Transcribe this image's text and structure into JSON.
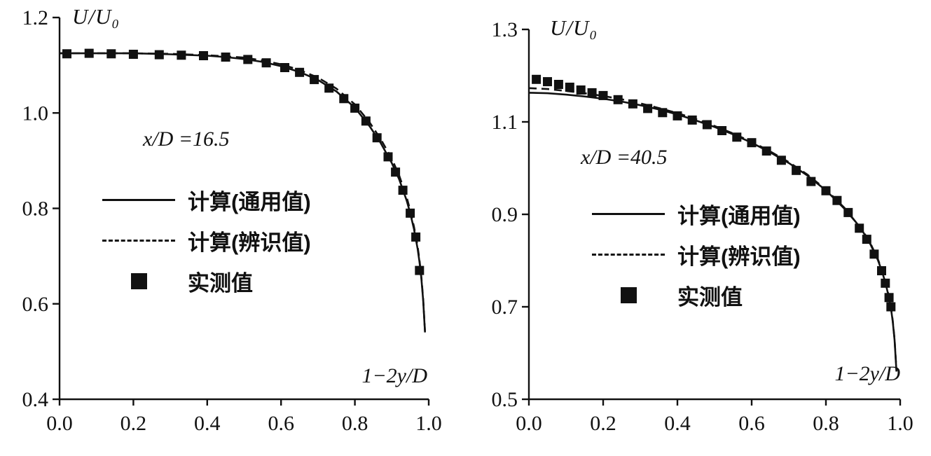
{
  "figure": {
    "background": "#ffffff",
    "ink": "#111111"
  },
  "chart_data": [
    {
      "type": "line",
      "title": "",
      "ylabel": "U/U₀",
      "xlabel": "1−2y/D",
      "annotation": "x/D =16.5",
      "xlim": [
        0.0,
        1.0
      ],
      "ylim": [
        0.4,
        1.2
      ],
      "xticks": [
        0.0,
        0.2,
        0.4,
        0.6,
        0.8,
        1.0
      ],
      "yticks": [
        0.4,
        0.6,
        0.8,
        1.0,
        1.2
      ],
      "grid": false,
      "legend_position": "inside-left",
      "legend": [
        {
          "label": "计算(通用值)",
          "marker": "solid-line"
        },
        {
          "label": "计算(辨识值)",
          "marker": "dashed-line"
        },
        {
          "label": "实测值",
          "marker": "filled-square"
        }
      ],
      "series": [
        {
          "name": "计算(通用值)",
          "type": "line",
          "style": "solid",
          "points": [
            [
              0,
              1.125
            ],
            [
              0.1,
              1.125
            ],
            [
              0.2,
              1.125
            ],
            [
              0.3,
              1.123
            ],
            [
              0.4,
              1.12
            ],
            [
              0.45,
              1.117
            ],
            [
              0.5,
              1.113
            ],
            [
              0.55,
              1.107
            ],
            [
              0.6,
              1.098
            ],
            [
              0.65,
              1.086
            ],
            [
              0.7,
              1.069
            ],
            [
              0.75,
              1.045
            ],
            [
              0.8,
              1.011
            ],
            [
              0.84,
              0.972
            ],
            [
              0.87,
              0.937
            ],
            [
              0.9,
              0.895
            ],
            [
              0.92,
              0.861
            ],
            [
              0.94,
              0.817
            ],
            [
              0.95,
              0.79
            ],
            [
              0.96,
              0.757
            ],
            [
              0.97,
              0.715
            ],
            [
              0.975,
              0.688
            ],
            [
              0.98,
              0.653
            ],
            [
              0.985,
              0.607
            ],
            [
              0.99,
              0.54
            ]
          ]
        },
        {
          "name": "计算(辨识值)",
          "type": "line",
          "style": "dashed",
          "points": [
            [
              0,
              1.125
            ],
            [
              0.1,
              1.125
            ],
            [
              0.2,
              1.125
            ],
            [
              0.3,
              1.124
            ],
            [
              0.4,
              1.121
            ],
            [
              0.5,
              1.116
            ],
            [
              0.55,
              1.11
            ],
            [
              0.6,
              1.102
            ],
            [
              0.65,
              1.09
            ],
            [
              0.7,
              1.074
            ],
            [
              0.75,
              1.051
            ],
            [
              0.8,
              1.018
            ],
            [
              0.84,
              0.98
            ],
            [
              0.87,
              0.945
            ],
            [
              0.9,
              0.904
            ],
            [
              0.92,
              0.869
            ],
            [
              0.94,
              0.824
            ],
            [
              0.95,
              0.796
            ],
            [
              0.96,
              0.762
            ],
            [
              0.97,
              0.72
            ],
            [
              0.975,
              0.692
            ],
            [
              0.98,
              0.656
            ],
            [
              0.985,
              0.61
            ],
            [
              0.99,
              0.542
            ]
          ]
        },
        {
          "name": "实测值",
          "type": "scatter",
          "style": "filled-square",
          "points": [
            [
              0.02,
              1.124
            ],
            [
              0.08,
              1.125
            ],
            [
              0.14,
              1.124
            ],
            [
              0.2,
              1.123
            ],
            [
              0.27,
              1.122
            ],
            [
              0.33,
              1.121
            ],
            [
              0.39,
              1.12
            ],
            [
              0.45,
              1.117
            ],
            [
              0.51,
              1.112
            ],
            [
              0.56,
              1.105
            ],
            [
              0.61,
              1.095
            ],
            [
              0.65,
              1.085
            ],
            [
              0.69,
              1.07
            ],
            [
              0.73,
              1.052
            ],
            [
              0.77,
              1.03
            ],
            [
              0.8,
              1.01
            ],
            [
              0.83,
              0.983
            ],
            [
              0.86,
              0.948
            ],
            [
              0.89,
              0.908
            ],
            [
              0.91,
              0.876
            ],
            [
              0.93,
              0.838
            ],
            [
              0.95,
              0.79
            ],
            [
              0.965,
              0.74
            ],
            [
              0.975,
              0.67
            ]
          ]
        }
      ]
    },
    {
      "type": "line",
      "title": "",
      "ylabel": "U/U₀",
      "xlabel": "1−2y/D",
      "annotation": "x/D =40.5",
      "xlim": [
        0.0,
        1.0
      ],
      "ylim": [
        0.5,
        1.3
      ],
      "xticks": [
        0.0,
        0.2,
        0.4,
        0.6,
        0.8,
        1.0
      ],
      "yticks": [
        0.5,
        0.7,
        0.9,
        1.1,
        1.3
      ],
      "grid": false,
      "legend_position": "inside-left",
      "legend": [
        {
          "label": "计算(通用值)",
          "marker": "solid-line"
        },
        {
          "label": "计算(辨识值)",
          "marker": "dashed-line"
        },
        {
          "label": "实测值",
          "marker": "filled-square"
        }
      ],
      "series": [
        {
          "name": "计算(通用值)",
          "type": "line",
          "style": "solid",
          "points": [
            [
              0,
              1.163
            ],
            [
              0.05,
              1.162
            ],
            [
              0.1,
              1.159
            ],
            [
              0.15,
              1.155
            ],
            [
              0.2,
              1.15
            ],
            [
              0.25,
              1.144
            ],
            [
              0.3,
              1.136
            ],
            [
              0.35,
              1.127
            ],
            [
              0.4,
              1.116
            ],
            [
              0.45,
              1.103
            ],
            [
              0.5,
              1.089
            ],
            [
              0.55,
              1.073
            ],
            [
              0.6,
              1.055
            ],
            [
              0.65,
              1.034
            ],
            [
              0.7,
              1.011
            ],
            [
              0.75,
              0.984
            ],
            [
              0.8,
              0.952
            ],
            [
              0.85,
              0.912
            ],
            [
              0.88,
              0.884
            ],
            [
              0.9,
              0.862
            ],
            [
              0.92,
              0.835
            ],
            [
              0.94,
              0.801
            ],
            [
              0.95,
              0.779
            ],
            [
              0.96,
              0.753
            ],
            [
              0.97,
              0.719
            ],
            [
              0.975,
              0.697
            ],
            [
              0.98,
              0.668
            ],
            [
              0.985,
              0.628
            ],
            [
              0.99,
              0.56
            ]
          ]
        },
        {
          "name": "计算(辨识值)",
          "type": "line",
          "style": "dashed",
          "points": [
            [
              0,
              1.173
            ],
            [
              0.05,
              1.171
            ],
            [
              0.1,
              1.167
            ],
            [
              0.15,
              1.162
            ],
            [
              0.2,
              1.156
            ],
            [
              0.25,
              1.149
            ],
            [
              0.3,
              1.14
            ],
            [
              0.35,
              1.13
            ],
            [
              0.4,
              1.119
            ],
            [
              0.45,
              1.106
            ],
            [
              0.5,
              1.091
            ],
            [
              0.55,
              1.075
            ],
            [
              0.6,
              1.057
            ],
            [
              0.65,
              1.036
            ],
            [
              0.7,
              1.013
            ],
            [
              0.75,
              0.986
            ],
            [
              0.8,
              0.954
            ],
            [
              0.85,
              0.914
            ],
            [
              0.9,
              0.864
            ],
            [
              0.92,
              0.837
            ],
            [
              0.94,
              0.803
            ],
            [
              0.95,
              0.781
            ],
            [
              0.96,
              0.755
            ],
            [
              0.97,
              0.721
            ],
            [
              0.975,
              0.699
            ],
            [
              0.98,
              0.67
            ],
            [
              0.985,
              0.63
            ],
            [
              0.99,
              0.562
            ]
          ]
        },
        {
          "name": "实测值",
          "type": "scatter",
          "style": "filled-square",
          "points": [
            [
              0.02,
              1.192
            ],
            [
              0.05,
              1.187
            ],
            [
              0.08,
              1.181
            ],
            [
              0.11,
              1.175
            ],
            [
              0.14,
              1.169
            ],
            [
              0.17,
              1.163
            ],
            [
              0.2,
              1.157
            ],
            [
              0.24,
              1.148
            ],
            [
              0.28,
              1.139
            ],
            [
              0.32,
              1.129
            ],
            [
              0.36,
              1.12
            ],
            [
              0.4,
              1.113
            ],
            [
              0.44,
              1.104
            ],
            [
              0.48,
              1.094
            ],
            [
              0.52,
              1.081
            ],
            [
              0.56,
              1.067
            ],
            [
              0.6,
              1.055
            ],
            [
              0.64,
              1.037
            ],
            [
              0.68,
              1.017
            ],
            [
              0.72,
              0.995
            ],
            [
              0.76,
              0.971
            ],
            [
              0.8,
              0.951
            ],
            [
              0.83,
              0.93
            ],
            [
              0.86,
              0.904
            ],
            [
              0.89,
              0.87
            ],
            [
              0.91,
              0.846
            ],
            [
              0.93,
              0.814
            ],
            [
              0.95,
              0.778
            ],
            [
              0.96,
              0.751
            ],
            [
              0.97,
              0.72
            ],
            [
              0.975,
              0.7
            ]
          ]
        }
      ]
    }
  ]
}
